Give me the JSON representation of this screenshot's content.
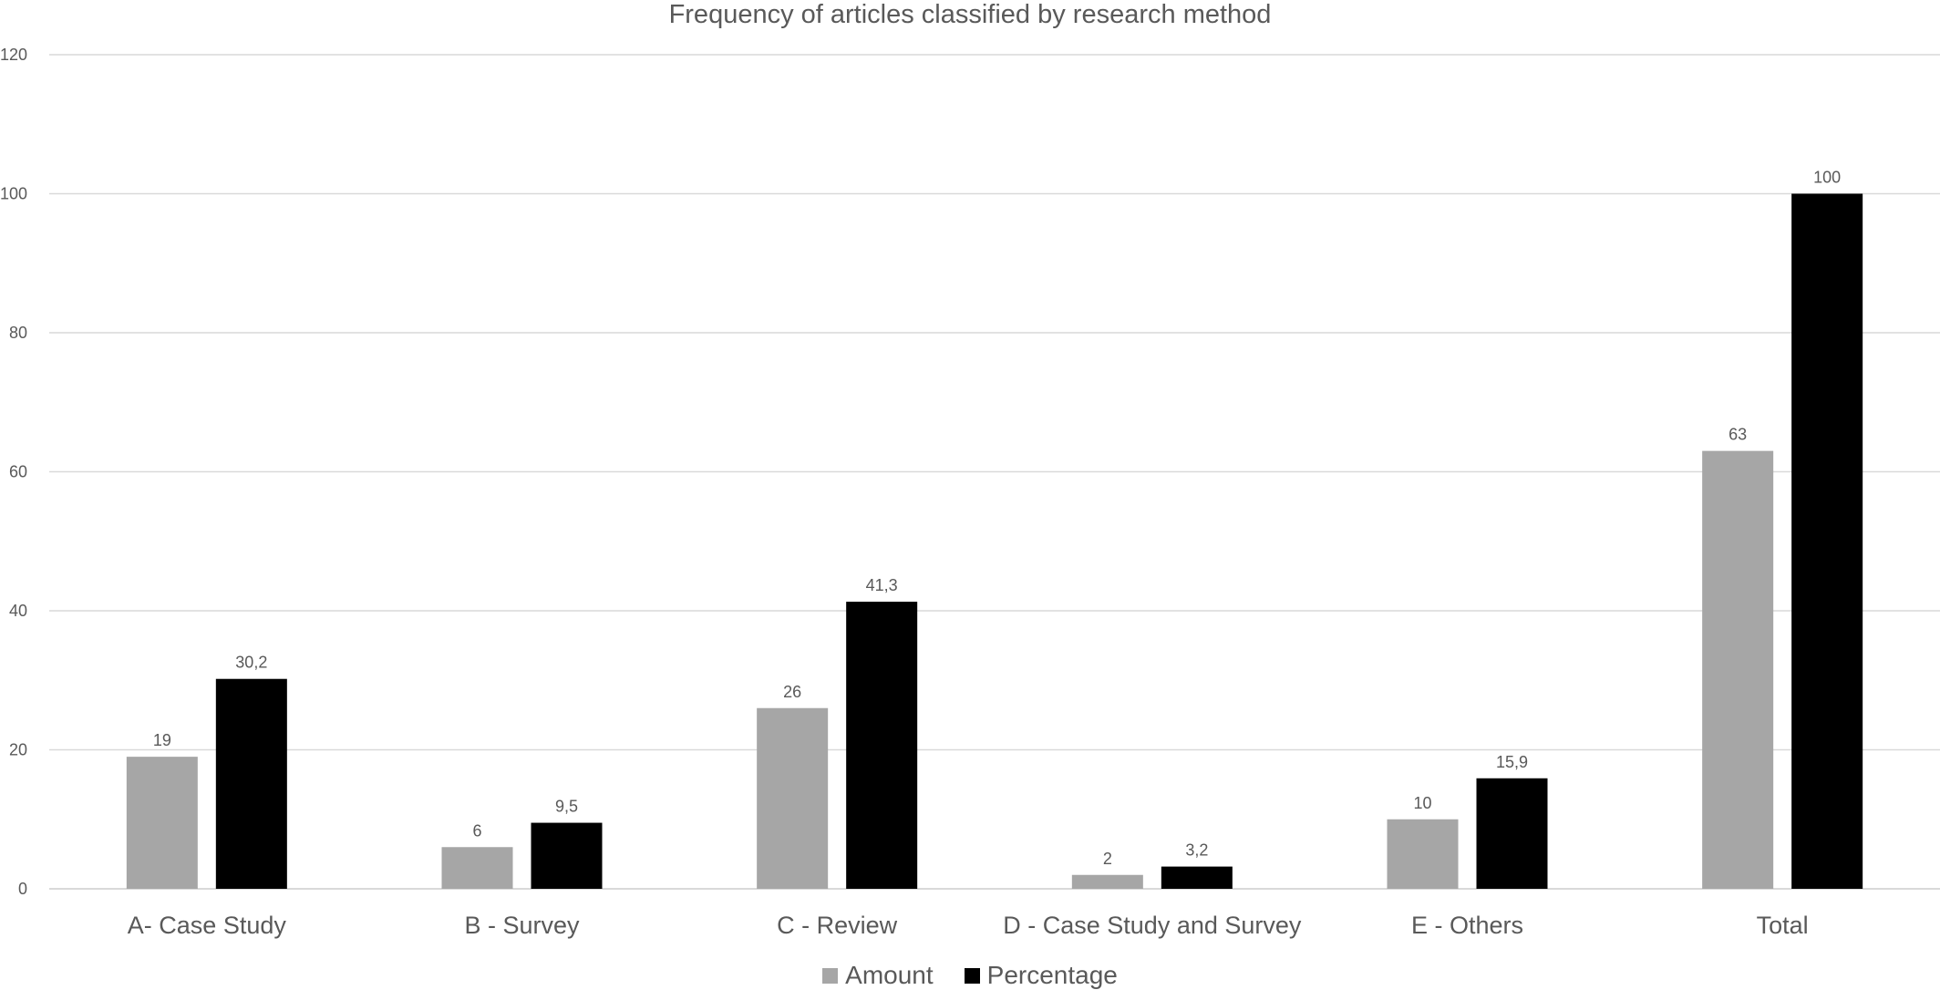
{
  "chart_data": {
    "type": "bar",
    "title": "Frequency of articles classified by research method",
    "categories": [
      "A- Case Study",
      "B - Survey",
      "C - Review",
      "D - Case Study and Survey",
      "E - Others",
      "Total"
    ],
    "series": [
      {
        "name": "Amount",
        "color": "#a6a6a6",
        "values": [
          19,
          6,
          26,
          2,
          10,
          63
        ],
        "labels": [
          "19",
          "6",
          "26",
          "2",
          "10",
          "63"
        ]
      },
      {
        "name": "Percentage",
        "color": "#000000",
        "values": [
          30.2,
          9.5,
          41.3,
          3.2,
          15.9,
          100
        ],
        "labels": [
          "30,2",
          "9,5",
          "41,3",
          "3,2",
          "15,9",
          "100"
        ]
      }
    ],
    "ylim": [
      0,
      120
    ],
    "yticks": [
      0,
      20,
      40,
      60,
      80,
      100,
      120
    ],
    "xlabel": "",
    "ylabel": "",
    "grid": true,
    "legend_position": "bottom",
    "gridline_color": "#d9d9d9",
    "axis_text_color": "#595959"
  }
}
